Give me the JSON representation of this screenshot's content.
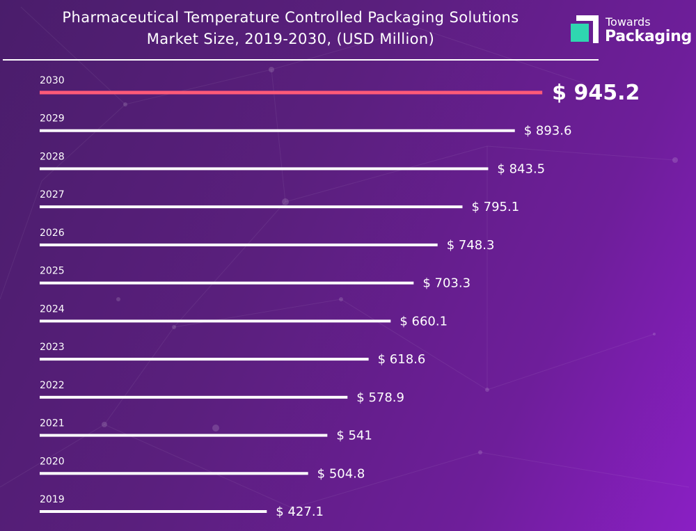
{
  "header": {
    "title_line1": "Pharmaceutical Temperature Controlled Packaging Solutions",
    "title_line2": "Market Size, 2019-2030, (USD Million)"
  },
  "logo": {
    "line1": "Towards",
    "line2": "Packaging",
    "colors": {
      "accent": "#2fd6b0"
    }
  },
  "colors": {
    "bar": "#ffffff",
    "highlight_bar": "#ff5a78",
    "background_start": "#4a1d6b",
    "background_end": "#8a1fc4"
  },
  "chart_data": {
    "type": "bar",
    "orientation": "horizontal",
    "title": "Pharmaceutical Temperature Controlled Packaging Solutions Market Size, 2019-2030, (USD Million)",
    "categories": [
      "2030",
      "2029",
      "2028",
      "2027",
      "2026",
      "2025",
      "2024",
      "2023",
      "2022",
      "2021",
      "2020",
      "2019"
    ],
    "values": [
      945.2,
      893.6,
      843.5,
      795.1,
      748.3,
      703.3,
      660.1,
      618.6,
      578.9,
      541,
      504.8,
      427.1
    ],
    "value_labels": [
      "$ 945.2",
      "$ 893.6",
      "$ 843.5",
      "$ 795.1",
      "$ 748.3",
      "$ 703.3",
      "$ 660.1",
      "$ 618.6",
      "$ 578.9",
      "$ 541",
      "$ 504.8",
      "$ 427.1"
    ],
    "highlight_category": "2030",
    "xlabel": "",
    "ylabel": "",
    "grid": false,
    "legend": "none"
  }
}
